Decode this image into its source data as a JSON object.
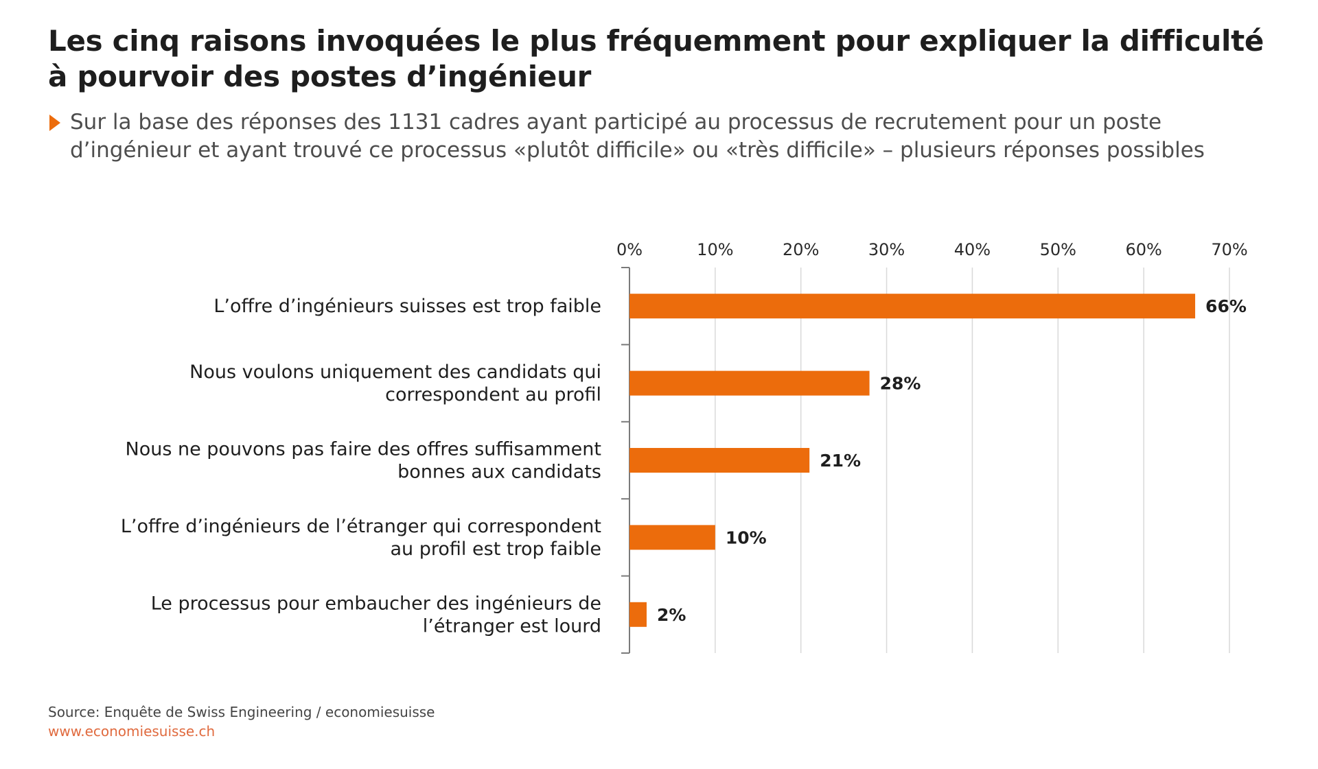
{
  "title": "Les cinq raisons invoquées le plus fréquemment pour expliquer la difficulté à pourvoir des postes d’ingénieur",
  "subtitle": "Sur la base des réponses des 1131 cadres ayant participé au processus de recrutement pour un poste d’ingénieur et ayant trouvé ce processus «plutôt difficile» ou «très difficile» – plusieurs réponses possibles",
  "colors": {
    "bar": "#ec6c0c",
    "accent": "#ec6c0c",
    "grid": "#d9d9d9",
    "axis": "#7a7a7a",
    "website": "#e06a3e"
  },
  "chart_data": {
    "type": "bar",
    "orientation": "horizontal",
    "categories": [
      [
        "L’offre d’ingénieurs suisses est trop faible"
      ],
      [
        "Nous voulons uniquement des candidats qui",
        "correspondent au profil"
      ],
      [
        "Nous ne pouvons pas faire des offres suffisamment",
        "bonnes aux candidats"
      ],
      [
        "L’offre d’ingénieurs de l’étranger qui correspondent",
        "au profil est trop faible"
      ],
      [
        "Le processus pour embaucher des ingénieurs de",
        "l’étranger est lourd"
      ]
    ],
    "values": [
      66,
      28,
      21,
      10,
      2
    ],
    "value_labels": [
      "66%",
      "28%",
      "21%",
      "10%",
      "2%"
    ],
    "xlim": [
      0,
      70
    ],
    "x_ticks": [
      0,
      10,
      20,
      30,
      40,
      50,
      60,
      70
    ],
    "x_tick_labels": [
      "0%",
      "10%",
      "20%",
      "30%",
      "40%",
      "50%",
      "60%",
      "70%"
    ],
    "x_axis_position": "top",
    "grid": "vertical",
    "legend": "none"
  },
  "footer": {
    "source": "Source: Enquête de Swiss Engineering / economiesuisse",
    "website": "www.economiesuisse.ch"
  }
}
